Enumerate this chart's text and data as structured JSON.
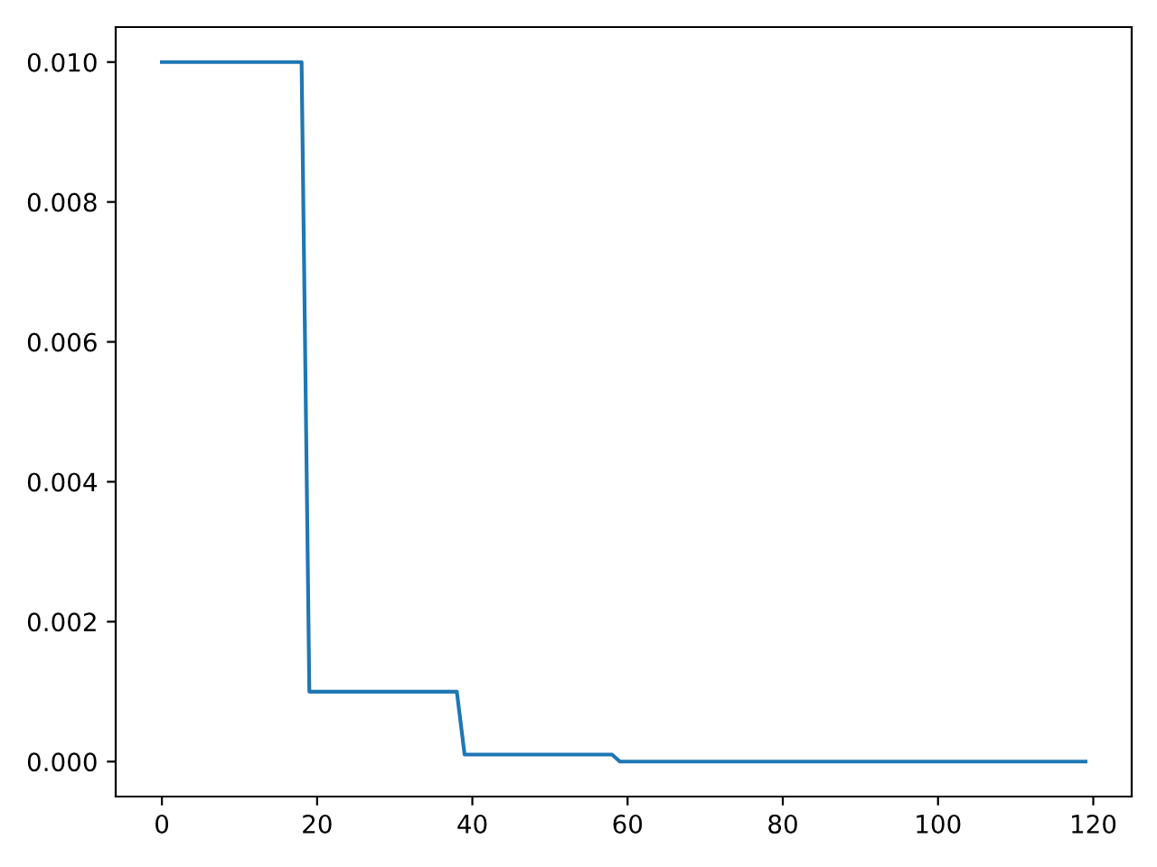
{
  "chart_data": {
    "type": "line",
    "series": [
      {
        "color": "#1f77b4",
        "x": [
          0,
          18,
          19,
          38,
          39,
          58,
          59,
          119
        ],
        "values": [
          0.01,
          0.01,
          0.001,
          0.001,
          0.0001,
          0.0001,
          0,
          0
        ]
      }
    ],
    "xlim": [
      -5.95,
      124.95
    ],
    "xticks": [
      0,
      20,
      40,
      60,
      80,
      100,
      120
    ],
    "ylim": [
      -0.0005,
      0.0105
    ],
    "yticks": [
      {
        "value": 0,
        "label": "0.000"
      },
      {
        "value": 0.002,
        "label": "0.002"
      },
      {
        "value": 0.004,
        "label": "0.004"
      },
      {
        "value": 0.006,
        "label": "0.006"
      },
      {
        "value": 0.008,
        "label": "0.008"
      },
      {
        "value": 0.01,
        "label": "0.010"
      }
    ],
    "grid": false,
    "marker": "none",
    "line_style": "solid"
  }
}
